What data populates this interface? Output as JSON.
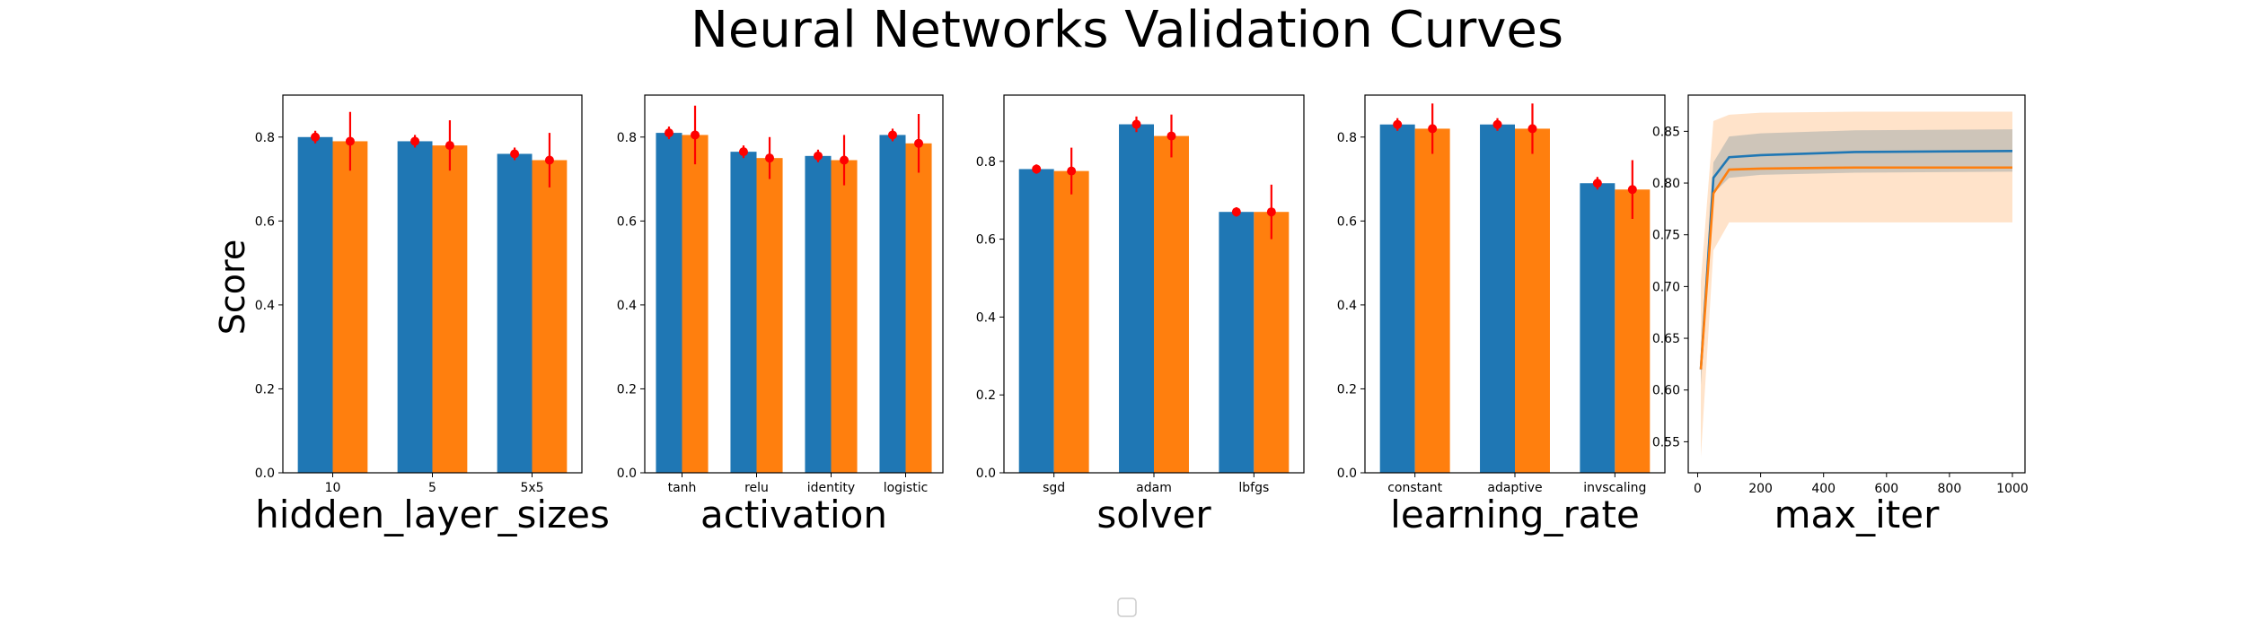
{
  "figure": {
    "title": "Neural Networks Validation Curves",
    "ylabel": "Score"
  },
  "colors": {
    "train": "#1f77b4",
    "test": "#ff7f0e",
    "error": "#ff0000"
  },
  "chart_data": [
    {
      "type": "bar",
      "xlabel": "hidden_layer_sizes",
      "categories": [
        "10",
        "5",
        "5x5"
      ],
      "ylim": [
        0,
        0.9
      ],
      "yticks": [
        0.0,
        0.2,
        0.4,
        0.6,
        0.8
      ],
      "ytick_labels": [
        "0.0",
        "0.2",
        "0.4",
        "0.6",
        "0.8"
      ],
      "series": [
        {
          "values": [
            0.8,
            0.79,
            0.76
          ],
          "errors": [
            0.015,
            0.015,
            0.015
          ]
        },
        {
          "values": [
            0.79,
            0.78,
            0.745
          ],
          "errors": [
            0.07,
            0.06,
            0.065
          ]
        }
      ]
    },
    {
      "type": "bar",
      "xlabel": "activation",
      "categories": [
        "tanh",
        "relu",
        "identity",
        "logistic"
      ],
      "ylim": [
        0,
        0.9
      ],
      "yticks": [
        0.0,
        0.2,
        0.4,
        0.6,
        0.8
      ],
      "ytick_labels": [
        "0.0",
        "0.2",
        "0.4",
        "0.6",
        "0.8"
      ],
      "series": [
        {
          "values": [
            0.81,
            0.765,
            0.755,
            0.805
          ],
          "errors": [
            0.015,
            0.015,
            0.015,
            0.015
          ]
        },
        {
          "values": [
            0.805,
            0.75,
            0.745,
            0.785
          ],
          "errors": [
            0.07,
            0.05,
            0.06,
            0.07
          ]
        }
      ]
    },
    {
      "type": "bar",
      "xlabel": "solver",
      "categories": [
        "sgd",
        "adam",
        "lbfgs"
      ],
      "ylim": [
        0,
        0.97
      ],
      "yticks": [
        0.0,
        0.2,
        0.4,
        0.6,
        0.8
      ],
      "ytick_labels": [
        "0.0",
        "0.2",
        "0.4",
        "0.6",
        "0.8"
      ],
      "series": [
        {
          "values": [
            0.78,
            0.895,
            0.67
          ],
          "errors": [
            0.012,
            0.02,
            0.012
          ]
        },
        {
          "values": [
            0.775,
            0.865,
            0.67
          ],
          "errors": [
            0.06,
            0.055,
            0.07
          ]
        }
      ]
    },
    {
      "type": "bar",
      "xlabel": "learning_rate",
      "categories": [
        "constant",
        "adaptive",
        "invscaling"
      ],
      "ylim": [
        0,
        0.9
      ],
      "yticks": [
        0.0,
        0.2,
        0.4,
        0.6,
        0.8
      ],
      "ytick_labels": [
        "0.0",
        "0.2",
        "0.4",
        "0.6",
        "0.8"
      ],
      "series": [
        {
          "values": [
            0.83,
            0.83,
            0.69
          ],
          "errors": [
            0.015,
            0.015,
            0.015
          ]
        },
        {
          "values": [
            0.82,
            0.82,
            0.675
          ],
          "errors": [
            0.06,
            0.06,
            0.07
          ]
        }
      ]
    },
    {
      "type": "line",
      "xlabel": "max_iter",
      "xlim": [
        -30,
        1040
      ],
      "ylim": [
        0.52,
        0.885
      ],
      "xticks": [
        0,
        200,
        400,
        600,
        800,
        1000
      ],
      "xtick_labels": [
        "0",
        "200",
        "400",
        "600",
        "800",
        "1000"
      ],
      "yticks": [
        0.55,
        0.6,
        0.65,
        0.7,
        0.75,
        0.8,
        0.85
      ],
      "ytick_labels": [
        "0.55",
        "0.60",
        "0.65",
        "0.70",
        "0.75",
        "0.80",
        "0.85"
      ],
      "x": [
        10,
        50,
        100,
        200,
        500,
        1000
      ],
      "series": [
        {
          "values": [
            0.62,
            0.805,
            0.825,
            0.827,
            0.83,
            0.831
          ],
          "band_low": [
            0.605,
            0.79,
            0.805,
            0.808,
            0.81,
            0.811
          ],
          "band_high": [
            0.635,
            0.82,
            0.845,
            0.848,
            0.851,
            0.852
          ]
        },
        {
          "values": [
            0.62,
            0.79,
            0.813,
            0.814,
            0.815,
            0.815
          ],
          "band_low": [
            0.535,
            0.735,
            0.762,
            0.762,
            0.762,
            0.762
          ],
          "band_high": [
            0.705,
            0.86,
            0.866,
            0.868,
            0.869,
            0.869
          ]
        }
      ]
    }
  ],
  "legend": {
    "entries": []
  }
}
